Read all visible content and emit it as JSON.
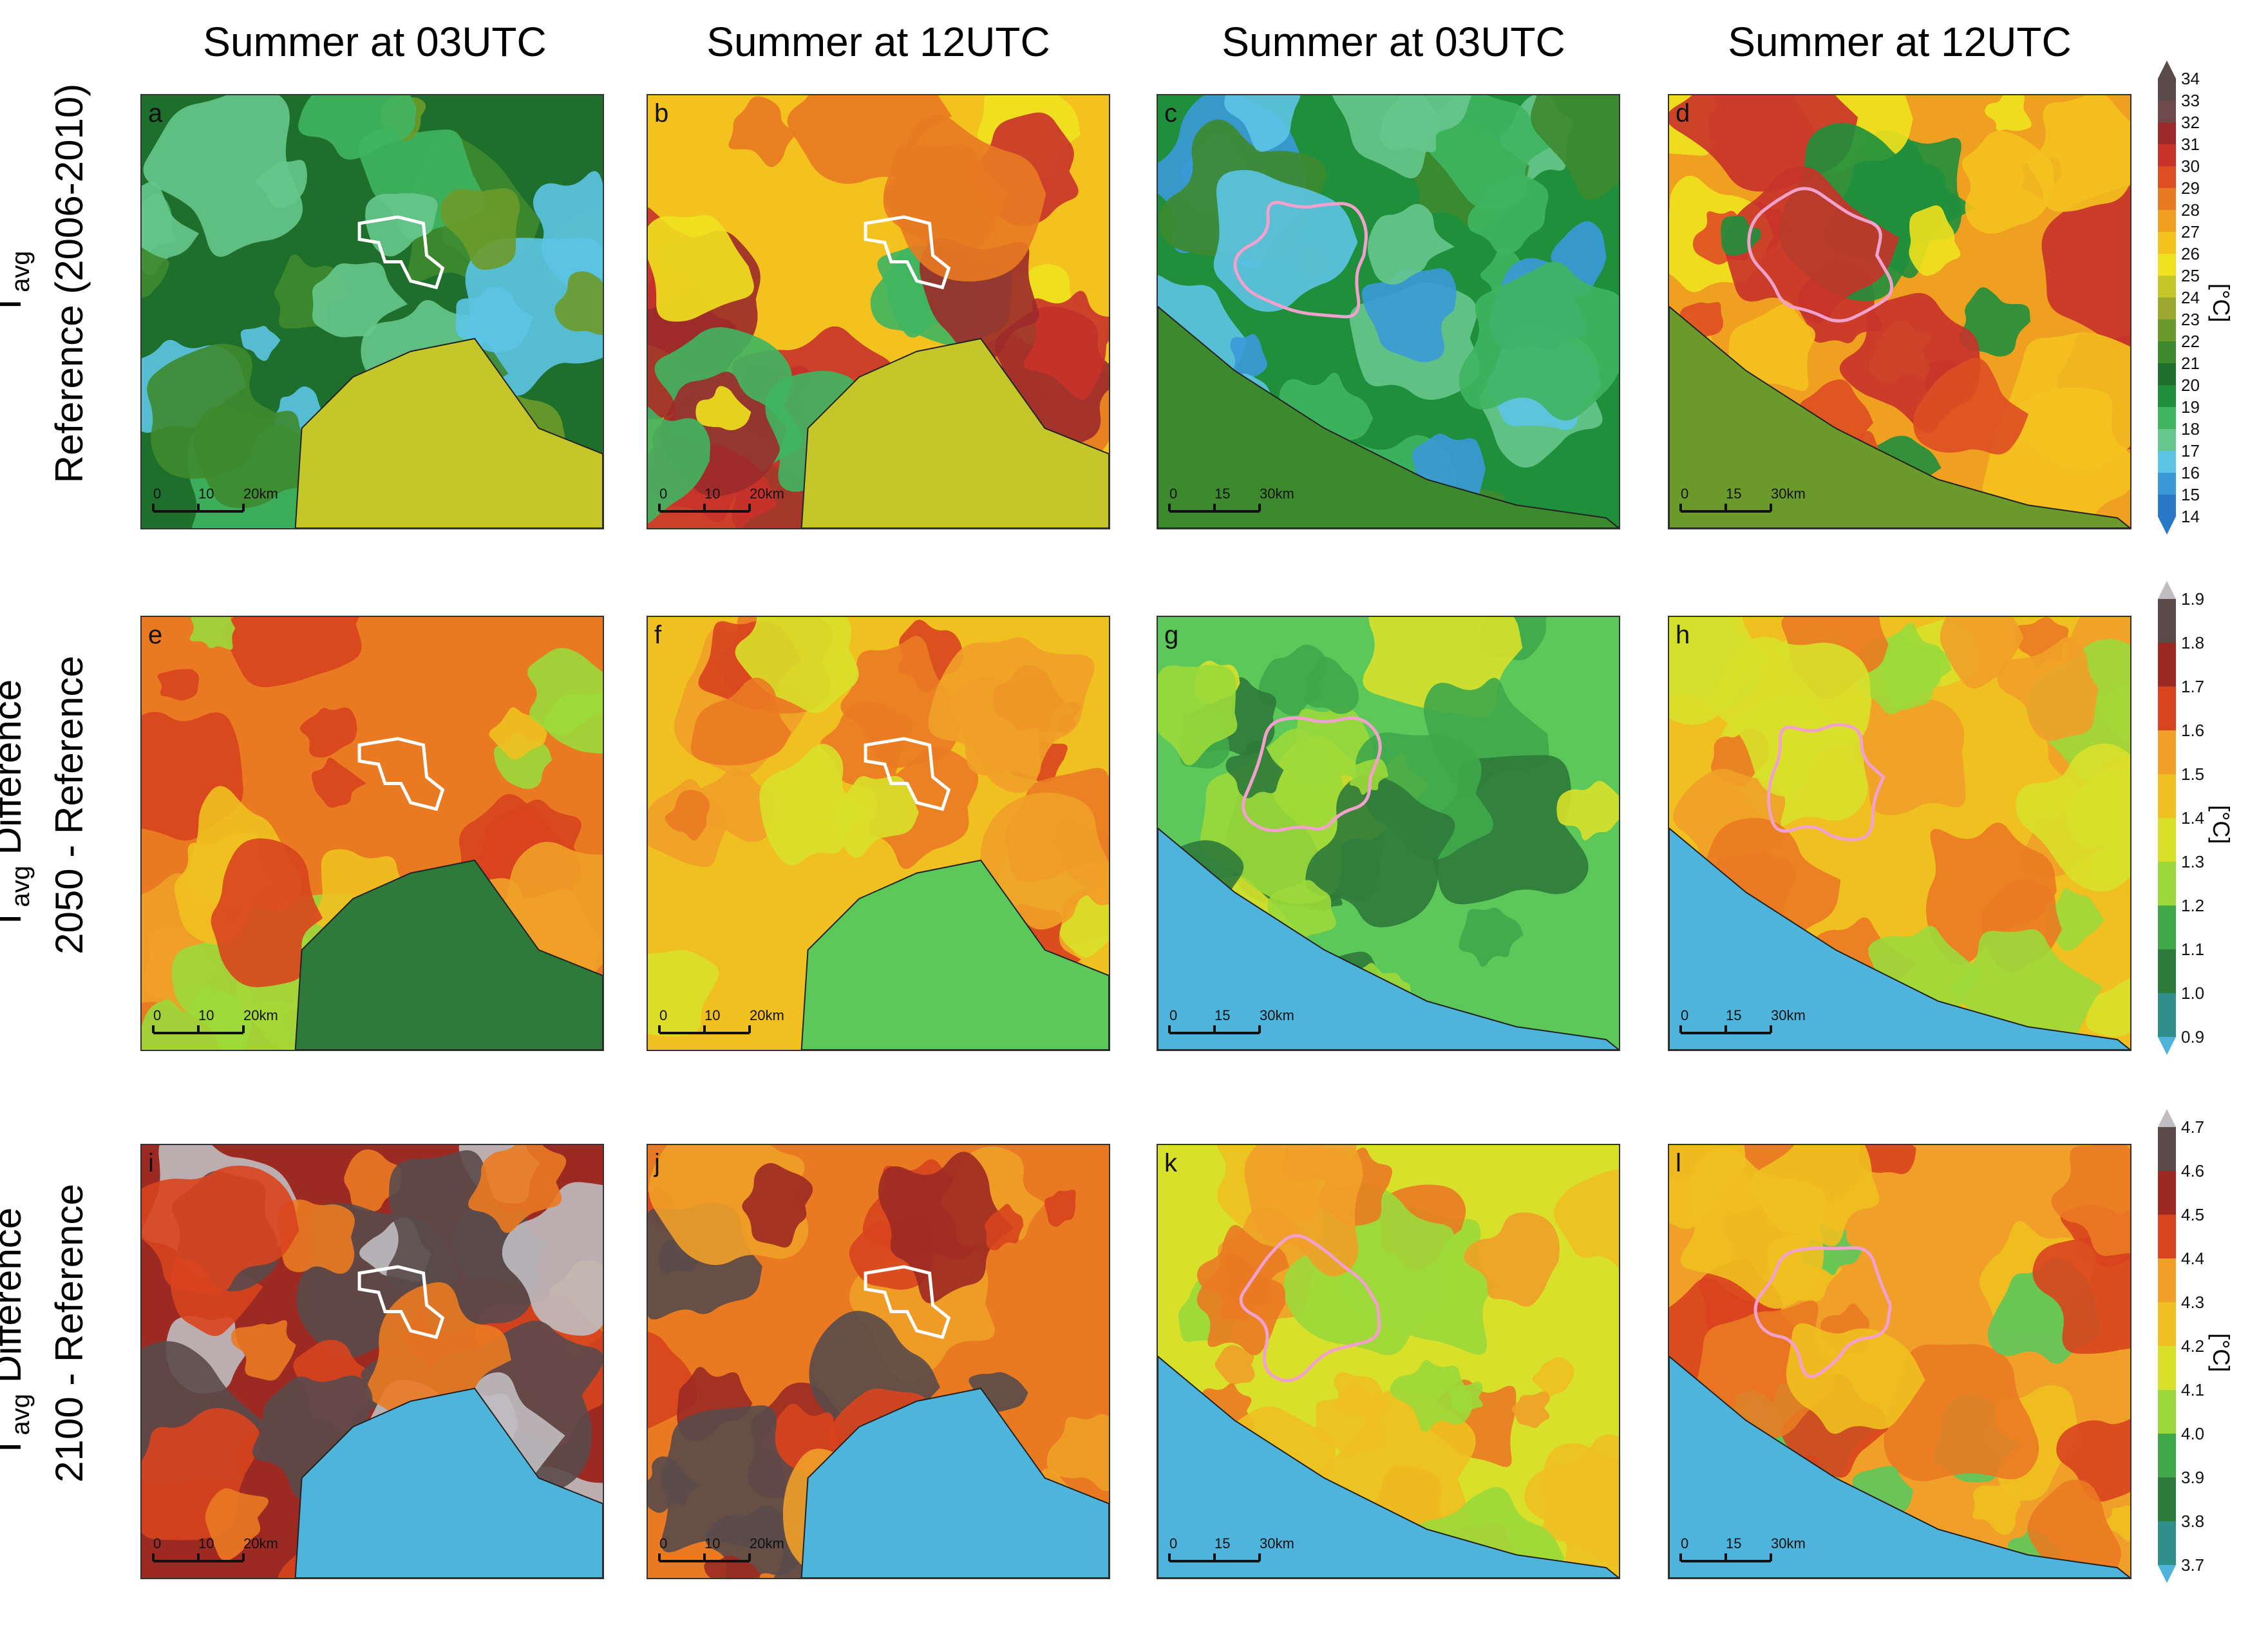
{
  "column_titles": [
    "Summer at 03UTC",
    "Summer at 12UTC",
    "Summer at 03UTC",
    "Summer at 12UTC"
  ],
  "rows": [
    {
      "line1": "T",
      "sub": "avg",
      "line2": "Reference (2006-2010)"
    },
    {
      "line1": "T",
      "sub": "avg",
      "line1_suffix": " Difference",
      "line2": "2050 - Reference"
    },
    {
      "line1": "T",
      "sub": "avg",
      "line1_suffix": " Difference",
      "line2": "2100 - Reference"
    }
  ],
  "panel_letters": [
    "a",
    "b",
    "c",
    "d",
    "e",
    "f",
    "g",
    "h",
    "i",
    "j",
    "k",
    "l"
  ],
  "scalebars": {
    "small": {
      "ticks": [
        "0",
        "10",
        "20km"
      ]
    },
    "large": {
      "ticks": [
        "0",
        "15",
        "30km"
      ]
    }
  },
  "colorbars": [
    {
      "ticks": [
        "34",
        "33",
        "32",
        "31",
        "30",
        "29",
        "28",
        "27",
        "26",
        "25",
        "24",
        "23",
        "22",
        "21",
        "20",
        "19",
        "18",
        "17",
        "16",
        "15",
        "14"
      ],
      "unit": "[°C]"
    },
    {
      "ticks": [
        "1.9",
        "1.8",
        "1.7",
        "1.6",
        "1.5",
        "1.4",
        "1.3",
        "1.2",
        "1.1",
        "1.0",
        "0.9"
      ],
      "unit": "[°C]"
    },
    {
      "ticks": [
        "4.7",
        "4.6",
        "4.5",
        "4.4",
        "4.3",
        "4.2",
        "4.1",
        "4.0",
        "3.9",
        "3.8",
        "3.7"
      ],
      "unit": "[°C]"
    }
  ],
  "colors": {
    "sea": "#4fb4dc",
    "ref_palette": [
      "#2a78c8",
      "#3a9ad8",
      "#5cc4e4",
      "#66c78c",
      "#3fb560",
      "#1f8f3c",
      "#1e6f2c",
      "#3d8a2e",
      "#6b9a2a",
      "#9aa830",
      "#c4c62a",
      "#f0e21e",
      "#f4c21e",
      "#f0a020",
      "#e87a22",
      "#de4e22",
      "#c8322a",
      "#9c2a2a",
      "#6e4a4a",
      "#5a4a4a"
    ],
    "diff_palette": [
      "#2f8f8a",
      "#2e7a3a",
      "#3fa84a",
      "#5cc85a",
      "#9bd93a",
      "#d8e02a",
      "#f0c020",
      "#f0a028",
      "#ea7a22",
      "#d8441e",
      "#9c2a22",
      "#5a4a4a",
      "#c0bcc0"
    ]
  }
}
